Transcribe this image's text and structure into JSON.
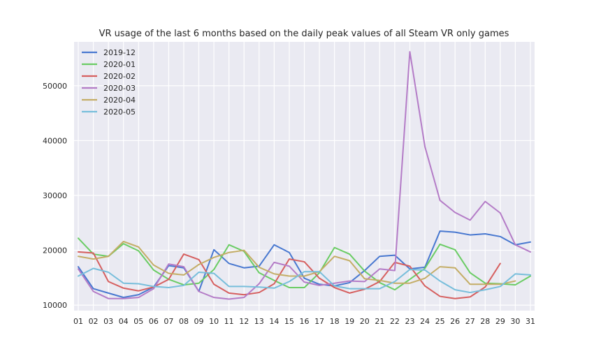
{
  "chart_data": {
    "type": "line",
    "title": "VR usage of the last 6 months based on the daily peak values of all Steam VR only games",
    "xlabel": "",
    "ylabel": "",
    "categories": [
      "01",
      "02",
      "03",
      "04",
      "05",
      "06",
      "07",
      "08",
      "09",
      "10",
      "11",
      "12",
      "13",
      "14",
      "15",
      "16",
      "17",
      "18",
      "19",
      "20",
      "21",
      "22",
      "23",
      "24",
      "25",
      "26",
      "27",
      "28",
      "29",
      "30",
      "31"
    ],
    "ylim": [
      9000,
      58000
    ],
    "yticks": [
      10000,
      20000,
      30000,
      40000,
      50000
    ],
    "grid": true,
    "legend_position": "top-left",
    "series": [
      {
        "name": "2019-12",
        "color": "#4878d0",
        "values": [
          17000,
          13000,
          12200,
          11400,
          11900,
          13300,
          17200,
          16800,
          12500,
          20100,
          17600,
          16800,
          17100,
          21000,
          19600,
          14900,
          13800,
          13500,
          14100,
          16300,
          18900,
          19100,
          16600,
          16900,
          23500,
          23300,
          22800,
          23000,
          22500,
          21000,
          21500
        ]
      },
      {
        "name": "2020-01",
        "color": "#6acc64",
        "values": [
          22200,
          19300,
          18900,
          21200,
          19900,
          16400,
          14700,
          13700,
          14000,
          16500,
          21000,
          19800,
          15900,
          14500,
          13200,
          13200,
          15900,
          20500,
          19300,
          16200,
          14100,
          12800,
          14700,
          16700,
          21100,
          20100,
          15900,
          14000,
          13900,
          13700,
          15300
        ]
      },
      {
        "name": "2020-02",
        "color": "#d65f5f",
        "values": [
          19700,
          19500,
          14300,
          13100,
          12600,
          13300,
          14700,
          19300,
          18300,
          13800,
          12200,
          11900,
          12300,
          13900,
          18400,
          17900,
          14900,
          13200,
          12200,
          12900,
          14300,
          17800,
          17100,
          13500,
          11600,
          11200,
          11500,
          13300,
          17600,
          null,
          null
        ]
      },
      {
        "name": "2020-03",
        "color": "#b47cc7",
        "values": [
          16600,
          12500,
          11200,
          11200,
          11400,
          13000,
          17500,
          17000,
          12500,
          11400,
          11100,
          11400,
          13900,
          17800,
          17100,
          14200,
          13600,
          14000,
          14400,
          14300,
          16600,
          16300,
          56200,
          38900,
          29100,
          26900,
          25500,
          28900,
          26800,
          21000,
          19700
        ]
      },
      {
        "name": "2020-04",
        "color": "#c4ad66",
        "values": [
          18900,
          18400,
          18900,
          21600,
          20600,
          17300,
          15800,
          15500,
          17400,
          18700,
          19600,
          20000,
          16900,
          15700,
          15300,
          15300,
          16100,
          18900,
          18100,
          14800,
          14500,
          14000,
          14000,
          14900,
          17000,
          16800,
          13800,
          13800,
          13800,
          14400,
          null
        ]
      },
      {
        "name": "2020-05",
        "color": "#77bedb",
        "values": [
          15300,
          16700,
          16000,
          14000,
          13900,
          13400,
          13200,
          13600,
          16000,
          15800,
          13400,
          13400,
          13300,
          13100,
          14300,
          16100,
          16100,
          13500,
          13000,
          13000,
          13000,
          14300,
          16500,
          16400,
          14400,
          12800,
          12300,
          12800,
          13400,
          15700,
          15500
        ]
      }
    ]
  }
}
